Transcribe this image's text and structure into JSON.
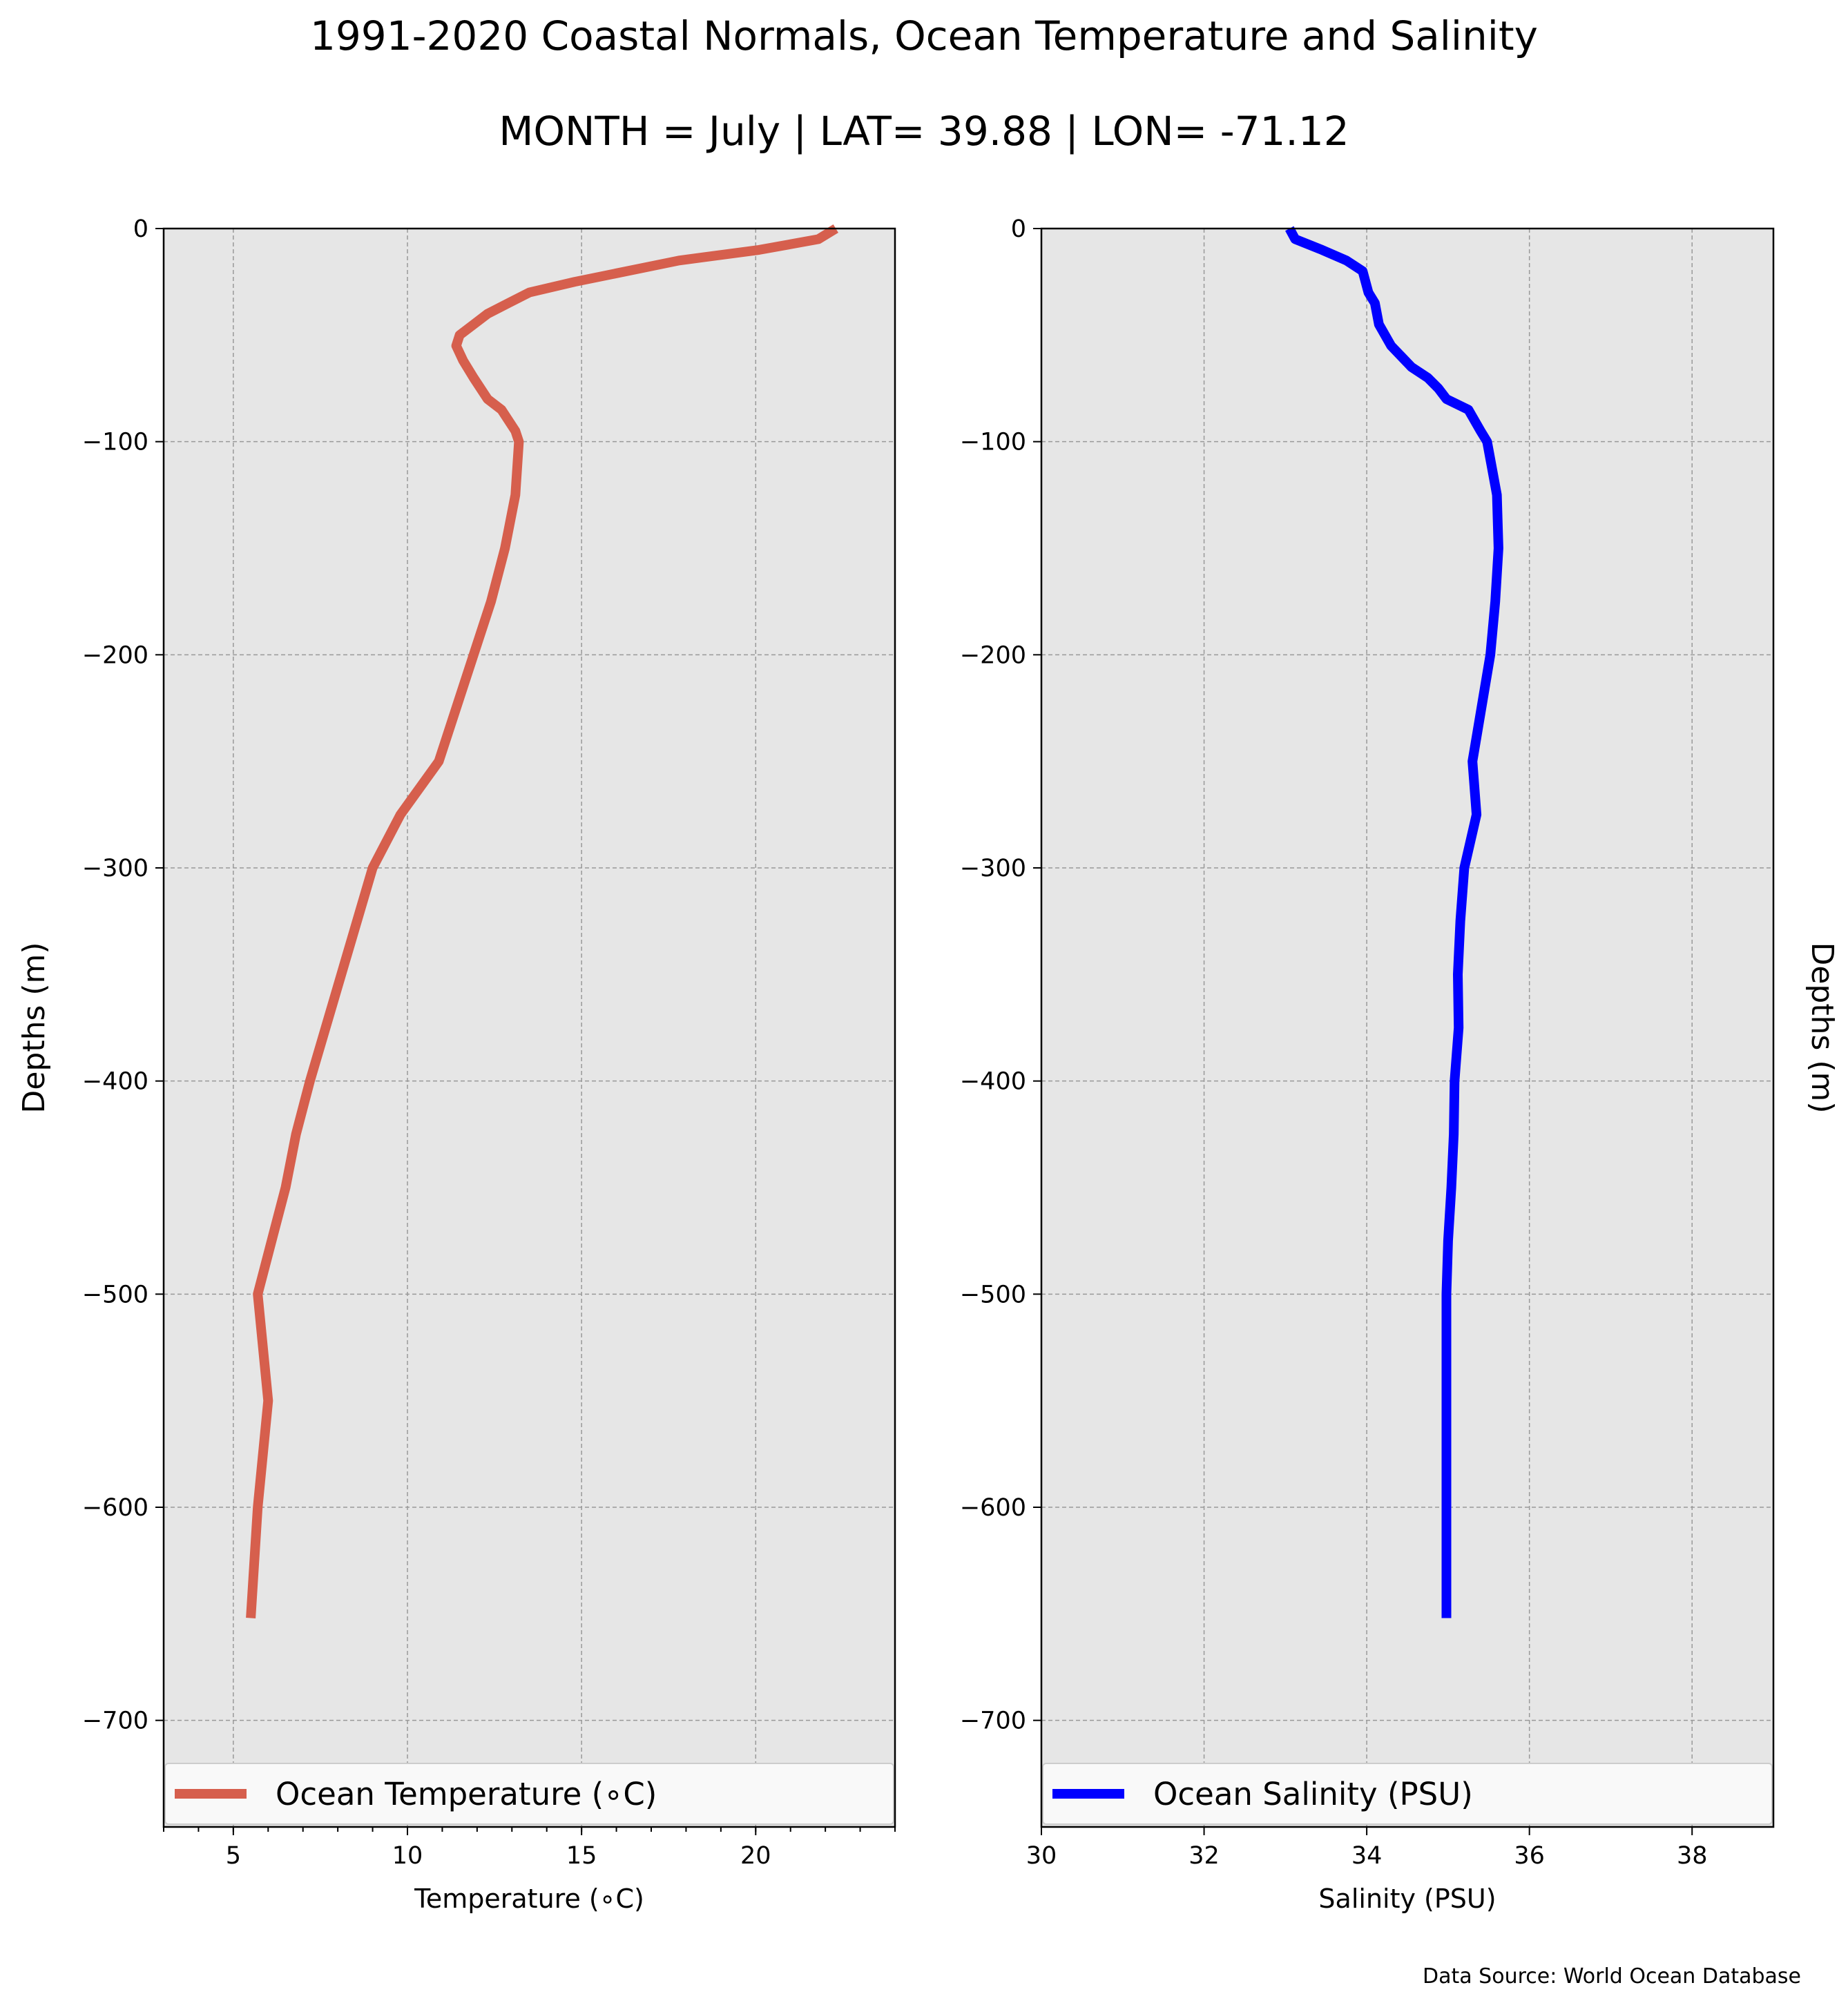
{
  "title": "1991-2020 Coastal Normals, Ocean Temperature and Salinity",
  "subtitle": "MONTH = July | LAT= 39.88 | LON= -71.12",
  "source": "Data Source: World Ocean Database",
  "colors": {
    "panel_bg": "#e6e6e6",
    "temperature": "#d65f4d",
    "salinity": "#0000ff",
    "grid": "#999999"
  },
  "chart_data": [
    {
      "type": "line",
      "series": [
        {
          "name": "Ocean Temperature (°C)",
          "color": "#d65f4d"
        }
      ],
      "legend_label": "Ocean Temperature (∘C)",
      "xlabel": "Temperature (∘C)",
      "ylabel": "Depths (m)",
      "ylabel_position": "left",
      "xlim": [
        3,
        24
      ],
      "ylim": [
        -750,
        0
      ],
      "xticks": [
        5,
        10,
        15,
        20
      ],
      "xticklabels": [
        "5",
        "10",
        "15",
        "20"
      ],
      "xminorticks": [
        3,
        4,
        5,
        6,
        7,
        8,
        9,
        10,
        11,
        12,
        13,
        14,
        15,
        16,
        17,
        18,
        19,
        20,
        21,
        22,
        23,
        24
      ],
      "yticks": [
        0,
        -100,
        -200,
        -300,
        -400,
        -500,
        -600,
        -700
      ],
      "yticklabels": [
        "0",
        "−100",
        "−200",
        "−300",
        "−400",
        "−500",
        "−600",
        "−700"
      ],
      "grid": true,
      "legend_position": "bottom",
      "x": [
        22.3,
        21.8,
        20.1,
        17.8,
        14.8,
        13.5,
        12.9,
        12.3,
        11.9,
        11.5,
        11.4,
        11.6,
        11.9,
        12.1,
        12.3,
        12.7,
        13.1,
        13.2,
        13.1,
        12.8,
        12.4,
        11.9,
        10.9,
        9.8,
        9.0,
        8.1,
        7.2,
        6.8,
        6.5,
        6.1,
        5.7,
        6.0,
        5.7,
        5.5
      ],
      "y": [
        0,
        -5,
        -10,
        -15,
        -25,
        -30,
        -35,
        -40,
        -45,
        -50,
        -55,
        -62,
        -70,
        -75,
        -80,
        -85,
        -95,
        -100,
        -125,
        -150,
        -175,
        -200,
        -250,
        -275,
        -300,
        -350,
        -400,
        -425,
        -450,
        -475,
        -500,
        -550,
        -600,
        -652
      ]
    },
    {
      "type": "line",
      "series": [
        {
          "name": "Ocean Salinity (PSU)",
          "color": "#0000ff"
        }
      ],
      "legend_label": "Ocean Salinity (PSU)",
      "xlabel": "Salinity (PSU)",
      "ylabel": "Depths (m)",
      "ylabel_position": "right",
      "xlim": [
        30,
        39
      ],
      "ylim": [
        -750,
        0
      ],
      "xticks": [
        30,
        32,
        34,
        36,
        38
      ],
      "xticklabels": [
        "30",
        "32",
        "34",
        "36",
        "38"
      ],
      "yticks": [
        0,
        -100,
        -200,
        -300,
        -400,
        -500,
        -600,
        -700
      ],
      "yticklabels": [
        "0",
        "−100",
        "−200",
        "−300",
        "−400",
        "−500",
        "−600",
        "−700"
      ],
      "grid": true,
      "legend_position": "bottom",
      "x": [
        33.05,
        33.12,
        33.45,
        33.75,
        33.95,
        34.02,
        34.1,
        34.15,
        34.3,
        34.55,
        34.75,
        34.88,
        34.98,
        35.25,
        35.4,
        35.48,
        35.6,
        35.62,
        35.58,
        35.52,
        35.3,
        35.35,
        35.2,
        35.15,
        35.12,
        35.13,
        35.08,
        35.07,
        35.04,
        35.0,
        34.98,
        34.98,
        34.98,
        34.98
      ],
      "y": [
        0,
        -5,
        -10,
        -15,
        -20,
        -30,
        -35,
        -45,
        -55,
        -65,
        -70,
        -75,
        -80,
        -85,
        -95,
        -100,
        -125,
        -150,
        -175,
        -200,
        -250,
        -275,
        -300,
        -325,
        -350,
        -375,
        -400,
        -425,
        -450,
        -475,
        -500,
        -550,
        -600,
        -652
      ]
    }
  ]
}
